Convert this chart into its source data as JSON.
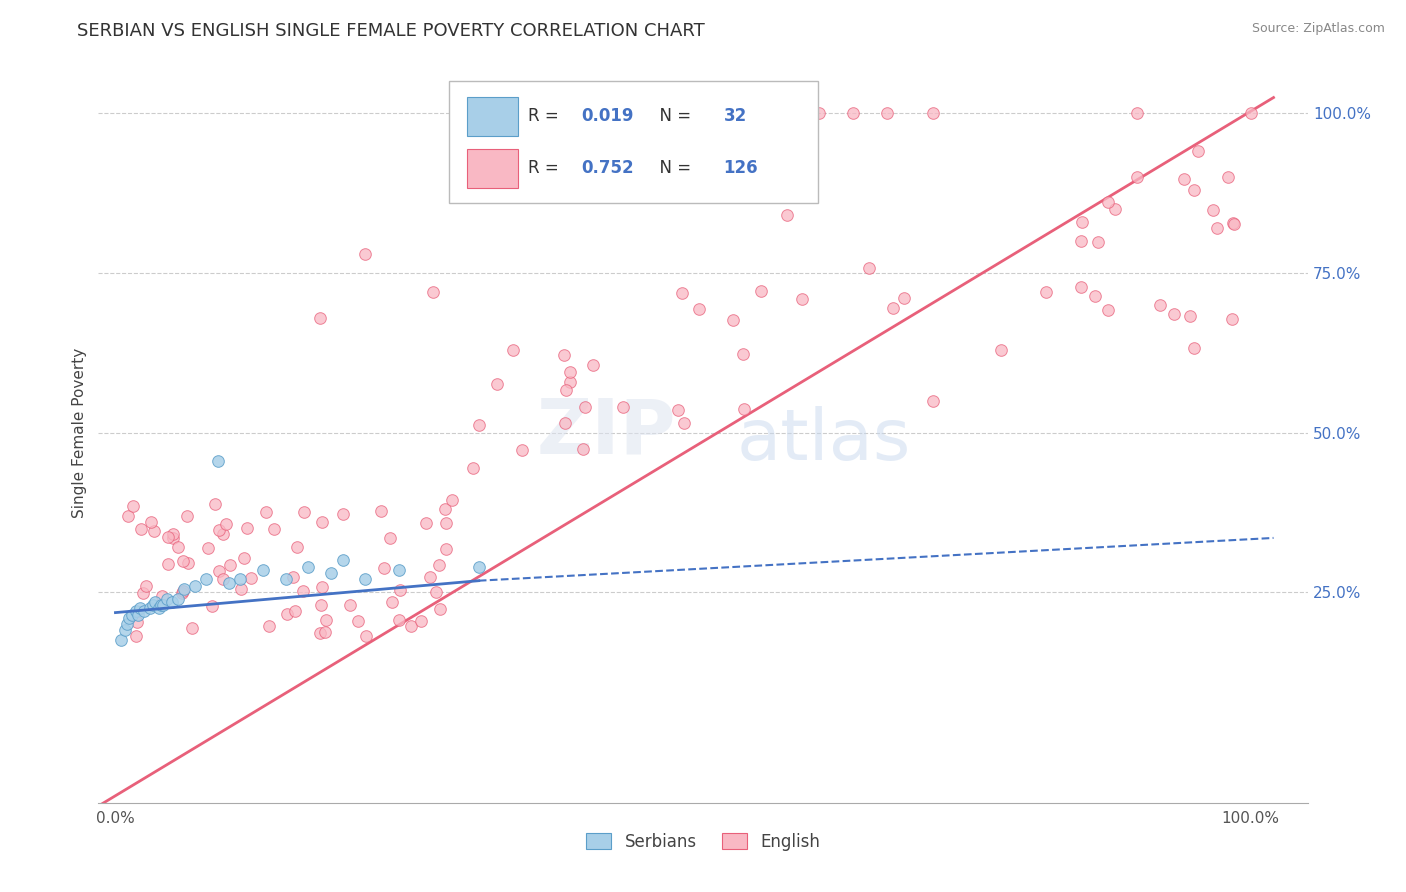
{
  "title": "SERBIAN VS ENGLISH SINGLE FEMALE POVERTY CORRELATION CHART",
  "source": "Source: ZipAtlas.com",
  "ylabel": "Single Female Poverty",
  "xtick_labels": [
    "0.0%",
    "100.0%"
  ],
  "right_ytick_labels": [
    "25.0%",
    "50.0%",
    "75.0%",
    "100.0%"
  ],
  "right_ytick_values": [
    0.25,
    0.5,
    0.75,
    1.0
  ],
  "legend_bottom": [
    "Serbians",
    "English"
  ],
  "legend_box_R_N": {
    "serbian_R": "0.019",
    "serbian_N": "32",
    "english_R": "0.752",
    "english_N": "126"
  },
  "serbian_color": "#a8cfe8",
  "serbian_edge_color": "#5b9ec9",
  "english_color": "#f9b8c4",
  "english_edge_color": "#e8607a",
  "regression_serbian_color": "#4472c4",
  "regression_english_color": "#e8607a",
  "xlim": [
    -0.015,
    1.05
  ],
  "ylim": [
    -0.08,
    1.08
  ],
  "title_fontsize": 13,
  "label_fontsize": 11,
  "tick_fontsize": 11,
  "source_fontsize": 9
}
